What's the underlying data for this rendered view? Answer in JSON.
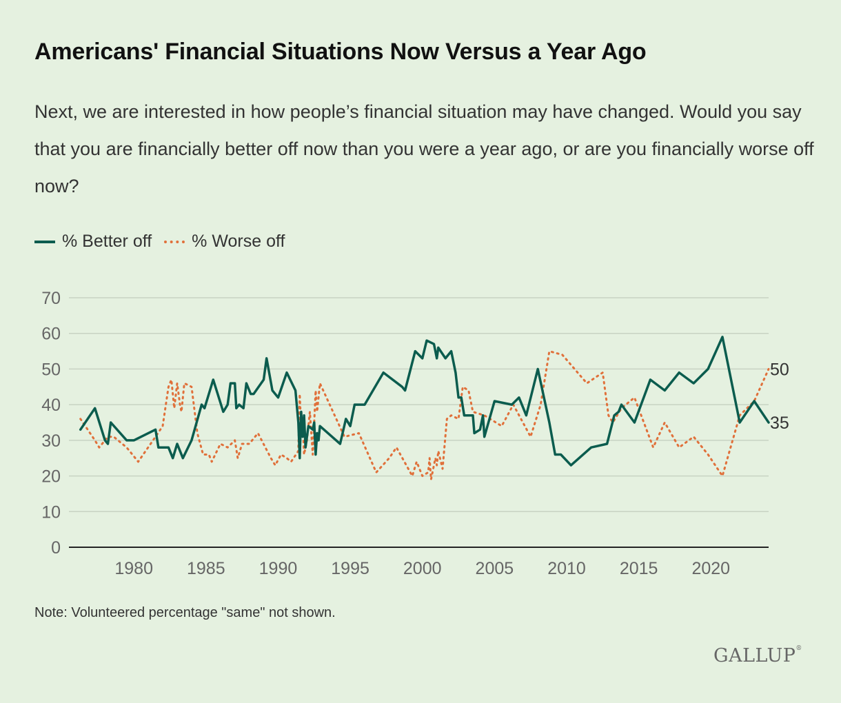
{
  "title": "Americans' Financial Situations Now Versus a Year Ago",
  "subtitle": "Next, we are interested in how people’s financial situation may have changed. Would you say that you are financially better off now than you were a year ago, or are you financially worse off now?",
  "note": "Note: Volunteered percentage \"same\" not shown.",
  "logo_text": "GALLUP",
  "colors": {
    "better": "#0b5c4e",
    "worse": "#e0703a",
    "grid": "#c8d3c3",
    "axis": "#222222",
    "tick_text": "#666666",
    "end_label": "#333333"
  },
  "chart_data": {
    "type": "line",
    "xlim": [
      1975.5,
      2024
    ],
    "ylim": [
      0,
      70
    ],
    "xticks": [
      1980,
      1985,
      1990,
      1995,
      2000,
      2005,
      2010,
      2015,
      2020
    ],
    "yticks": [
      0,
      10,
      20,
      30,
      40,
      50,
      60,
      70
    ],
    "grid": true,
    "legend_position": "top-left",
    "end_labels": [
      "50",
      "35"
    ],
    "series": [
      {
        "name": "% Better off",
        "style": "solid",
        "points": [
          [
            1976.3,
            33
          ],
          [
            1977.3,
            39
          ],
          [
            1978.0,
            30
          ],
          [
            1978.2,
            29
          ],
          [
            1978.4,
            35
          ],
          [
            1979.5,
            30
          ],
          [
            1980.0,
            30
          ],
          [
            1981.5,
            33
          ],
          [
            1981.7,
            28
          ],
          [
            1982.4,
            28
          ],
          [
            1982.7,
            25
          ],
          [
            1983.0,
            29
          ],
          [
            1983.4,
            25
          ],
          [
            1984.0,
            30
          ],
          [
            1984.7,
            40
          ],
          [
            1984.9,
            39
          ],
          [
            1985.5,
            47
          ],
          [
            1986.2,
            38
          ],
          [
            1986.5,
            40
          ],
          [
            1986.7,
            46
          ],
          [
            1987.0,
            46
          ],
          [
            1987.1,
            39
          ],
          [
            1987.3,
            40
          ],
          [
            1987.6,
            39
          ],
          [
            1987.8,
            46
          ],
          [
            1988.1,
            43
          ],
          [
            1988.3,
            43
          ],
          [
            1989.0,
            47
          ],
          [
            1989.2,
            53
          ],
          [
            1989.6,
            44
          ],
          [
            1990.0,
            42
          ],
          [
            1990.6,
            49
          ],
          [
            1991.2,
            44
          ],
          [
            1991.4,
            35
          ],
          [
            1991.5,
            25
          ],
          [
            1991.6,
            38
          ],
          [
            1991.7,
            31
          ],
          [
            1991.8,
            37
          ],
          [
            1991.9,
            28
          ],
          [
            1992.1,
            34
          ],
          [
            1992.4,
            33
          ],
          [
            1992.5,
            35
          ],
          [
            1992.6,
            26
          ],
          [
            1992.7,
            32
          ],
          [
            1992.8,
            30
          ],
          [
            1992.9,
            34
          ],
          [
            1994.3,
            29
          ],
          [
            1994.7,
            36
          ],
          [
            1995.0,
            34
          ],
          [
            1995.3,
            40
          ],
          [
            1996.0,
            40
          ],
          [
            1997.3,
            49
          ],
          [
            1998.6,
            45
          ],
          [
            1998.8,
            44
          ],
          [
            1999.5,
            55
          ],
          [
            2000.0,
            53
          ],
          [
            2000.3,
            58
          ],
          [
            2000.8,
            57
          ],
          [
            2001.0,
            53
          ],
          [
            2001.1,
            56
          ],
          [
            2001.6,
            53
          ],
          [
            2002.0,
            55
          ],
          [
            2002.3,
            49
          ],
          [
            2002.5,
            42
          ],
          [
            2002.7,
            42
          ],
          [
            2002.9,
            37
          ],
          [
            2003.5,
            37
          ],
          [
            2003.6,
            32
          ],
          [
            2004.0,
            33
          ],
          [
            2004.2,
            37
          ],
          [
            2004.3,
            31
          ],
          [
            2005.0,
            41
          ],
          [
            2006.2,
            40
          ],
          [
            2006.7,
            42
          ],
          [
            2007.2,
            37
          ],
          [
            2008.0,
            50
          ],
          [
            2008.8,
            35
          ],
          [
            2009.2,
            26
          ],
          [
            2009.6,
            26
          ],
          [
            2010.3,
            23
          ],
          [
            2011.7,
            28
          ],
          [
            2012.8,
            29
          ],
          [
            2013.3,
            37
          ],
          [
            2013.6,
            38
          ],
          [
            2013.8,
            40
          ],
          [
            2014.7,
            35
          ],
          [
            2015.8,
            47
          ],
          [
            2016.8,
            44
          ],
          [
            2017.8,
            49
          ],
          [
            2018.8,
            46
          ],
          [
            2019.8,
            50
          ],
          [
            2020.8,
            59
          ],
          [
            2022.0,
            35
          ],
          [
            2023.0,
            41
          ],
          [
            2024.0,
            35
          ]
        ]
      },
      {
        "name": "% Worse off",
        "style": "dotted",
        "points": [
          [
            1976.3,
            36
          ],
          [
            1977.3,
            30
          ],
          [
            1977.6,
            28
          ],
          [
            1978.2,
            31
          ],
          [
            1978.6,
            31
          ],
          [
            1979.5,
            28
          ],
          [
            1980.3,
            24
          ],
          [
            1981.5,
            31
          ],
          [
            1982.0,
            34
          ],
          [
            1982.4,
            45
          ],
          [
            1982.6,
            47
          ],
          [
            1982.7,
            43
          ],
          [
            1982.8,
            39
          ],
          [
            1983.0,
            46
          ],
          [
            1983.2,
            40
          ],
          [
            1983.3,
            38
          ],
          [
            1983.5,
            46
          ],
          [
            1984.0,
            45
          ],
          [
            1984.4,
            32
          ],
          [
            1984.8,
            26
          ],
          [
            1985.2,
            26
          ],
          [
            1985.4,
            24
          ],
          [
            1986.0,
            29
          ],
          [
            1986.5,
            28
          ],
          [
            1987.0,
            30
          ],
          [
            1987.2,
            25
          ],
          [
            1987.5,
            29
          ],
          [
            1988.0,
            29
          ],
          [
            1988.6,
            32
          ],
          [
            1989.5,
            25
          ],
          [
            1989.8,
            23
          ],
          [
            1990.2,
            26
          ],
          [
            1990.6,
            25
          ],
          [
            1990.9,
            24
          ],
          [
            1991.4,
            27
          ],
          [
            1991.5,
            43
          ],
          [
            1991.6,
            33
          ],
          [
            1991.7,
            36
          ],
          [
            1991.8,
            26
          ],
          [
            1992.0,
            30
          ],
          [
            1992.2,
            38
          ],
          [
            1992.4,
            26
          ],
          [
            1992.6,
            44
          ],
          [
            1992.7,
            38
          ],
          [
            1992.9,
            46
          ],
          [
            1994.6,
            31
          ],
          [
            1995.6,
            32
          ],
          [
            1996.8,
            21
          ],
          [
            1997.7,
            25
          ],
          [
            1998.2,
            28
          ],
          [
            1999.3,
            20
          ],
          [
            1999.6,
            24
          ],
          [
            2000.0,
            20
          ],
          [
            2000.4,
            21
          ],
          [
            2000.5,
            25
          ],
          [
            2000.6,
            19
          ],
          [
            2000.9,
            25
          ],
          [
            2001.0,
            23
          ],
          [
            2001.1,
            27
          ],
          [
            2001.4,
            22
          ],
          [
            2001.7,
            36
          ],
          [
            2002.0,
            37
          ],
          [
            2002.5,
            36
          ],
          [
            2002.8,
            45
          ],
          [
            2003.2,
            44
          ],
          [
            2003.5,
            38
          ],
          [
            2004.3,
            37
          ],
          [
            2005.5,
            34
          ],
          [
            2006.3,
            40
          ],
          [
            2007.5,
            31
          ],
          [
            2008.2,
            40
          ],
          [
            2008.8,
            55
          ],
          [
            2009.7,
            54
          ],
          [
            2011.4,
            46
          ],
          [
            2012.5,
            49
          ],
          [
            2012.9,
            37
          ],
          [
            2013.2,
            35
          ],
          [
            2013.8,
            39
          ],
          [
            2014.7,
            42
          ],
          [
            2016.0,
            28
          ],
          [
            2016.8,
            35
          ],
          [
            2017.8,
            28
          ],
          [
            2018.8,
            31
          ],
          [
            2019.8,
            26
          ],
          [
            2020.8,
            20
          ],
          [
            2022.0,
            37
          ],
          [
            2023.0,
            41
          ],
          [
            2024.0,
            50
          ]
        ]
      }
    ]
  }
}
